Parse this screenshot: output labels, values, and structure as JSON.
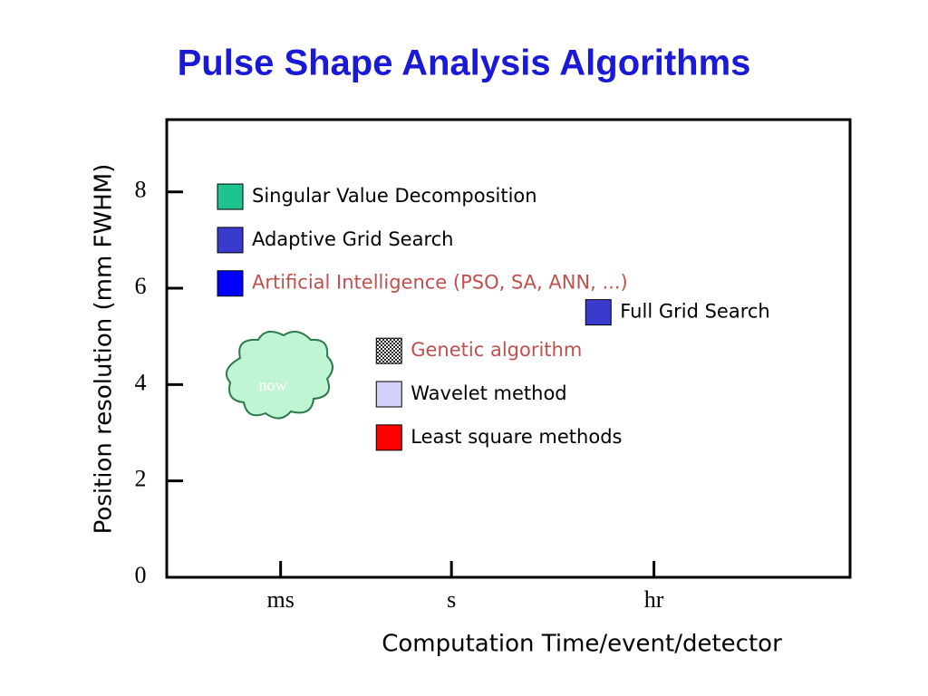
{
  "chart_data": {
    "type": "scatter",
    "title": "Pulse Shape Analysis Algorithms",
    "x_label": "Computation Time/event/detector",
    "y_label": "Position resolution (mm FWHM)",
    "x_scale": "log",
    "xlim": [
      1e-05,
      10000000
    ],
    "xticks": [
      {
        "value": 0.001,
        "label": "ms"
      },
      {
        "value": 1,
        "label": "s"
      },
      {
        "value": 3600,
        "label": "hr"
      }
    ],
    "ylim": [
      0,
      9.5
    ],
    "yticks": [
      0,
      2,
      4,
      6,
      8
    ],
    "annotation": "now",
    "series": [
      {
        "name": "Singular Value Decomposition",
        "color": "#1ec38f",
        "label_color": "#000000",
        "x": [
          0.00013
        ],
        "values": [
          7.9
        ]
      },
      {
        "name": "Adaptive Grid Search",
        "color": "#3a3acd",
        "label_color": "#000000",
        "x": [
          0.00013
        ],
        "values": [
          7.0
        ]
      },
      {
        "name": "Artificial Intelligence (PSO, SA, ANN, ...)",
        "color": "#0000ff",
        "label_color": "#c0504d",
        "x": [
          0.00013
        ],
        "values": [
          6.1
        ]
      },
      {
        "name": "Full Grid Search",
        "color": "#3a3acd",
        "label_color": "#000000",
        "x": [
          380
        ],
        "values": [
          5.5
        ]
      },
      {
        "name": "Genetic algorithm",
        "color": "#333333",
        "fill_pattern": "checker",
        "label_color": "#c0504d",
        "x": [
          0.08
        ],
        "values": [
          4.7
        ]
      },
      {
        "name": "Wavelet method",
        "color": "#d0d0f8",
        "label_color": "#000000",
        "x": [
          0.08
        ],
        "values": [
          3.8
        ]
      },
      {
        "name": "Least square methods",
        "color": "#ff0000",
        "label_color": "#000000",
        "x": [
          0.08
        ],
        "values": [
          2.9
        ]
      }
    ]
  }
}
